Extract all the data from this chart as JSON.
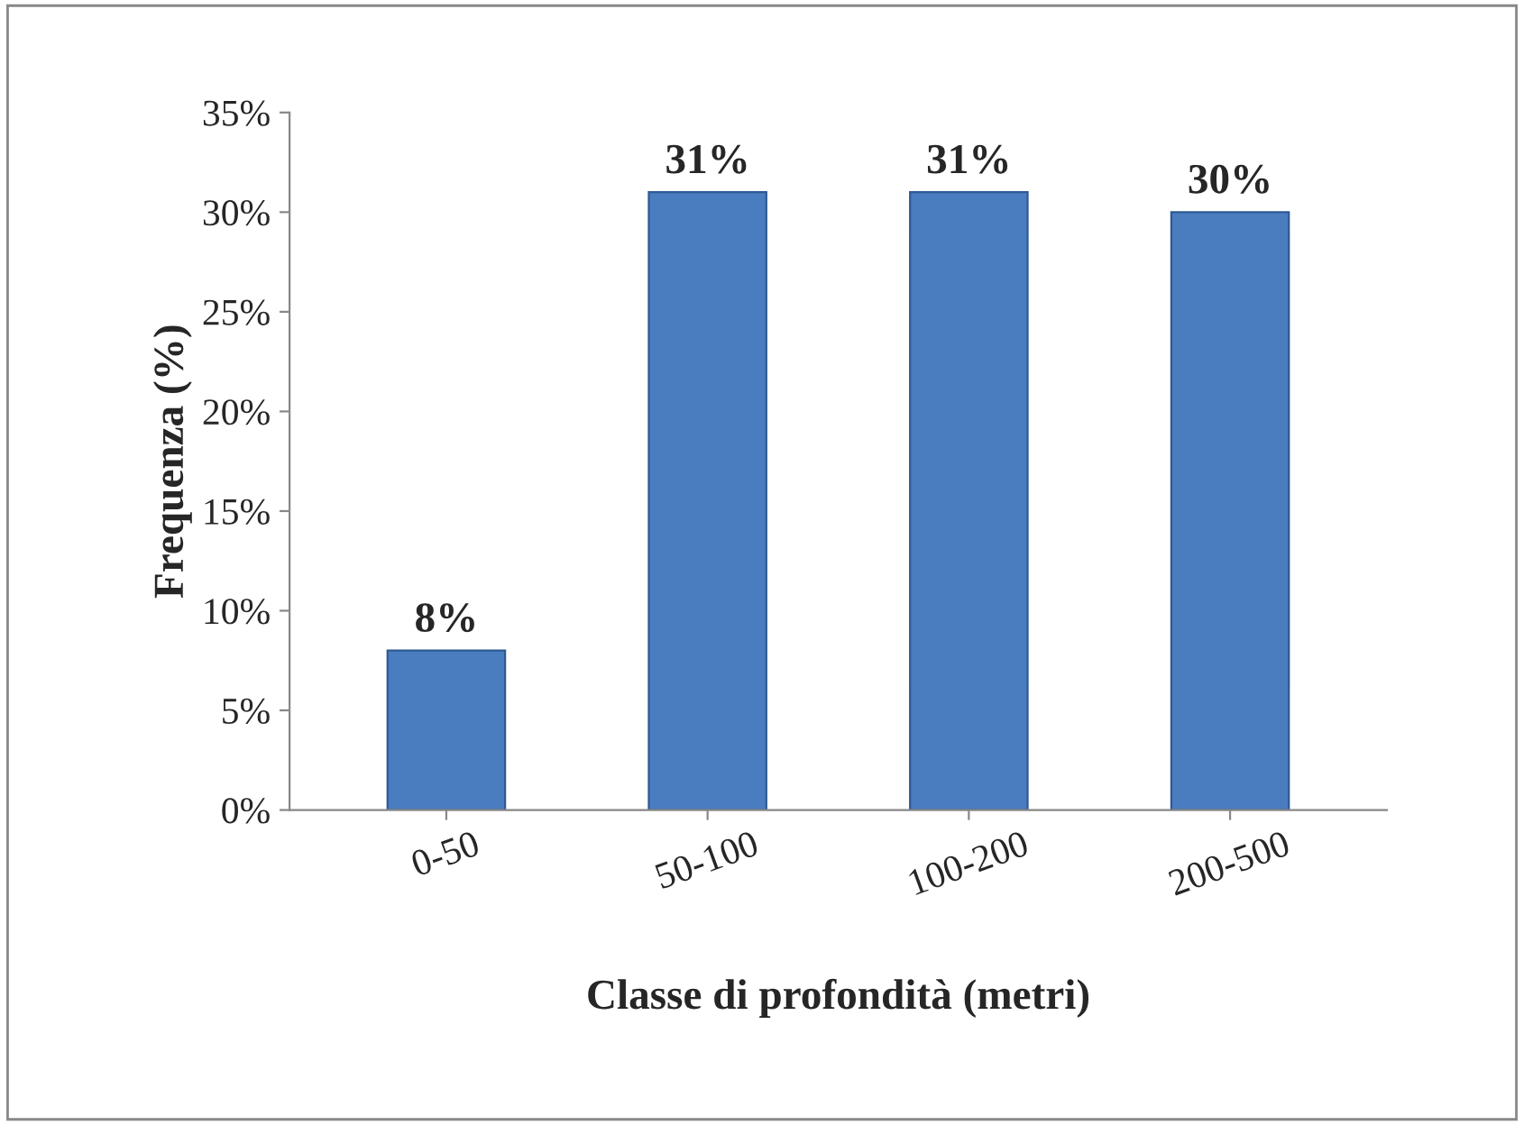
{
  "chart_data": {
    "type": "bar",
    "xlabel": "Classe di profondità (metri)",
    "ylabel": "Frequenza (%)",
    "categories": [
      "0-50",
      "50-100",
      "100-200",
      "200-500"
    ],
    "values": [
      8,
      31,
      31,
      30
    ],
    "value_labels": [
      "8%",
      "31%",
      "31%",
      "30%"
    ],
    "color": "#4a7cc0",
    "ylim": [
      0,
      35
    ],
    "yticks": [
      {
        "value": 0,
        "label": "0%"
      },
      {
        "value": 5,
        "label": "5%"
      },
      {
        "value": 10,
        "label": "10%"
      },
      {
        "value": 15,
        "label": "15%"
      },
      {
        "value": 20,
        "label": "20%"
      },
      {
        "value": 25,
        "label": "25%"
      },
      {
        "value": 30,
        "label": "30%"
      },
      {
        "value": 35,
        "label": "35%"
      }
    ],
    "grid": false
  }
}
